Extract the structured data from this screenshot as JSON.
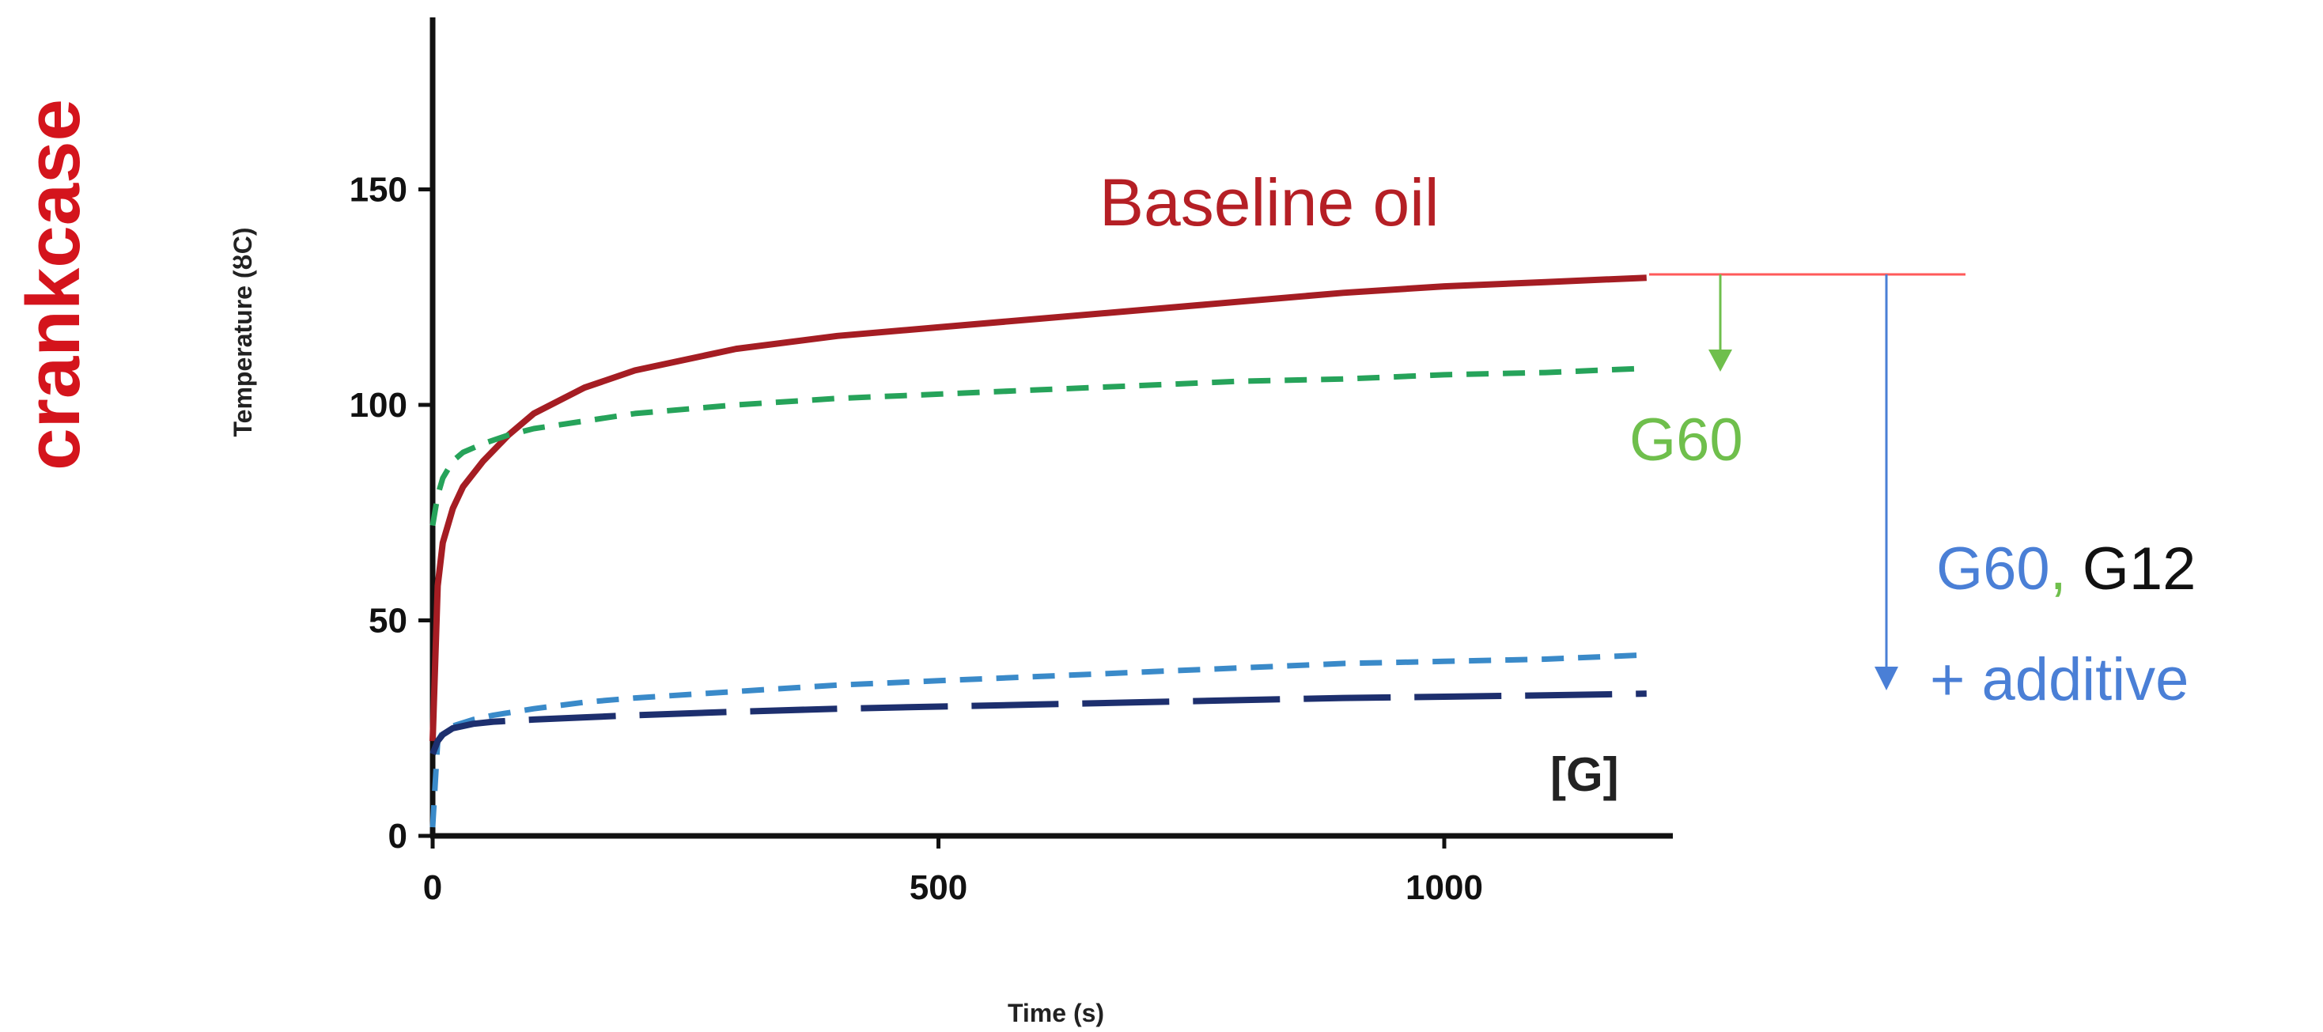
{
  "side_label": "crankcase",
  "chart_data": {
    "type": "line",
    "title": "",
    "xlabel": "Time (s)",
    "ylabel": "Temperature (ȣC)",
    "xlim": [
      0,
      1200
    ],
    "ylim": [
      0,
      190
    ],
    "xticks": [
      0,
      500,
      1000
    ],
    "yticks": [
      0,
      50,
      100,
      150
    ],
    "grid": false,
    "series": [
      {
        "color": "#a51d23",
        "style": "solid",
        "x": [
          0,
          5,
          10,
          20,
          30,
          50,
          75,
          100,
          150,
          200,
          300,
          400,
          500,
          600,
          700,
          800,
          900,
          1000,
          1100,
          1200
        ],
        "y": [
          22,
          58,
          68,
          76,
          81,
          87,
          93,
          98,
          104,
          108,
          113,
          116,
          118,
          120,
          122,
          124,
          126,
          127.5,
          128.5,
          129.5
        ]
      },
      {
        "color": "#26a35a",
        "style": "dashed",
        "x": [
          0,
          5,
          10,
          20,
          30,
          50,
          75,
          100,
          200,
          300,
          400,
          500,
          600,
          700,
          800,
          900,
          1000,
          1100,
          1200
        ],
        "y": [
          72,
          79,
          83,
          87,
          89,
          91,
          93,
          94.5,
          98,
          100,
          101.5,
          102.5,
          103.5,
          104.5,
          105.5,
          106,
          107,
          107.5,
          108.5
        ]
      },
      {
        "color": "#3a8ac9",
        "style": "dashed",
        "x": [
          0,
          5,
          10,
          20,
          40,
          60,
          100,
          150,
          200,
          300,
          400,
          500,
          600,
          700,
          800,
          900,
          1000,
          1100,
          1200
        ],
        "y": [
          2,
          22,
          24,
          25.5,
          27,
          28,
          29.5,
          31,
          32,
          33.5,
          35,
          36,
          37,
          38,
          39,
          40,
          40.5,
          41,
          42
        ]
      },
      {
        "color": "#1d2f6e",
        "style": "longdash",
        "x": [
          0,
          5,
          10,
          20,
          40,
          60,
          100,
          150,
          200,
          300,
          400,
          500,
          600,
          700,
          800,
          900,
          1000,
          1100,
          1200
        ],
        "y": [
          19,
          22,
          23.5,
          25,
          26,
          26.5,
          27,
          27.5,
          28,
          28.8,
          29.5,
          30,
          30.5,
          31,
          31.5,
          32,
          32.3,
          32.6,
          33
        ]
      }
    ],
    "annotations": {
      "baseline": "Baseline oil",
      "g60": "G60",
      "g60_blue": "G60",
      "comma": ",",
      "g12": "G12",
      "additive": "+ additive",
      "bracket_g": "[G]"
    },
    "colors": {
      "baseline": "#b51f25",
      "green": "#6fbf4c",
      "blue": "#4a7fd6",
      "ref_line": "#ff5a5a",
      "green_arrow": "#6fbf4c",
      "blue_arrow": "#4a7fd6"
    }
  }
}
